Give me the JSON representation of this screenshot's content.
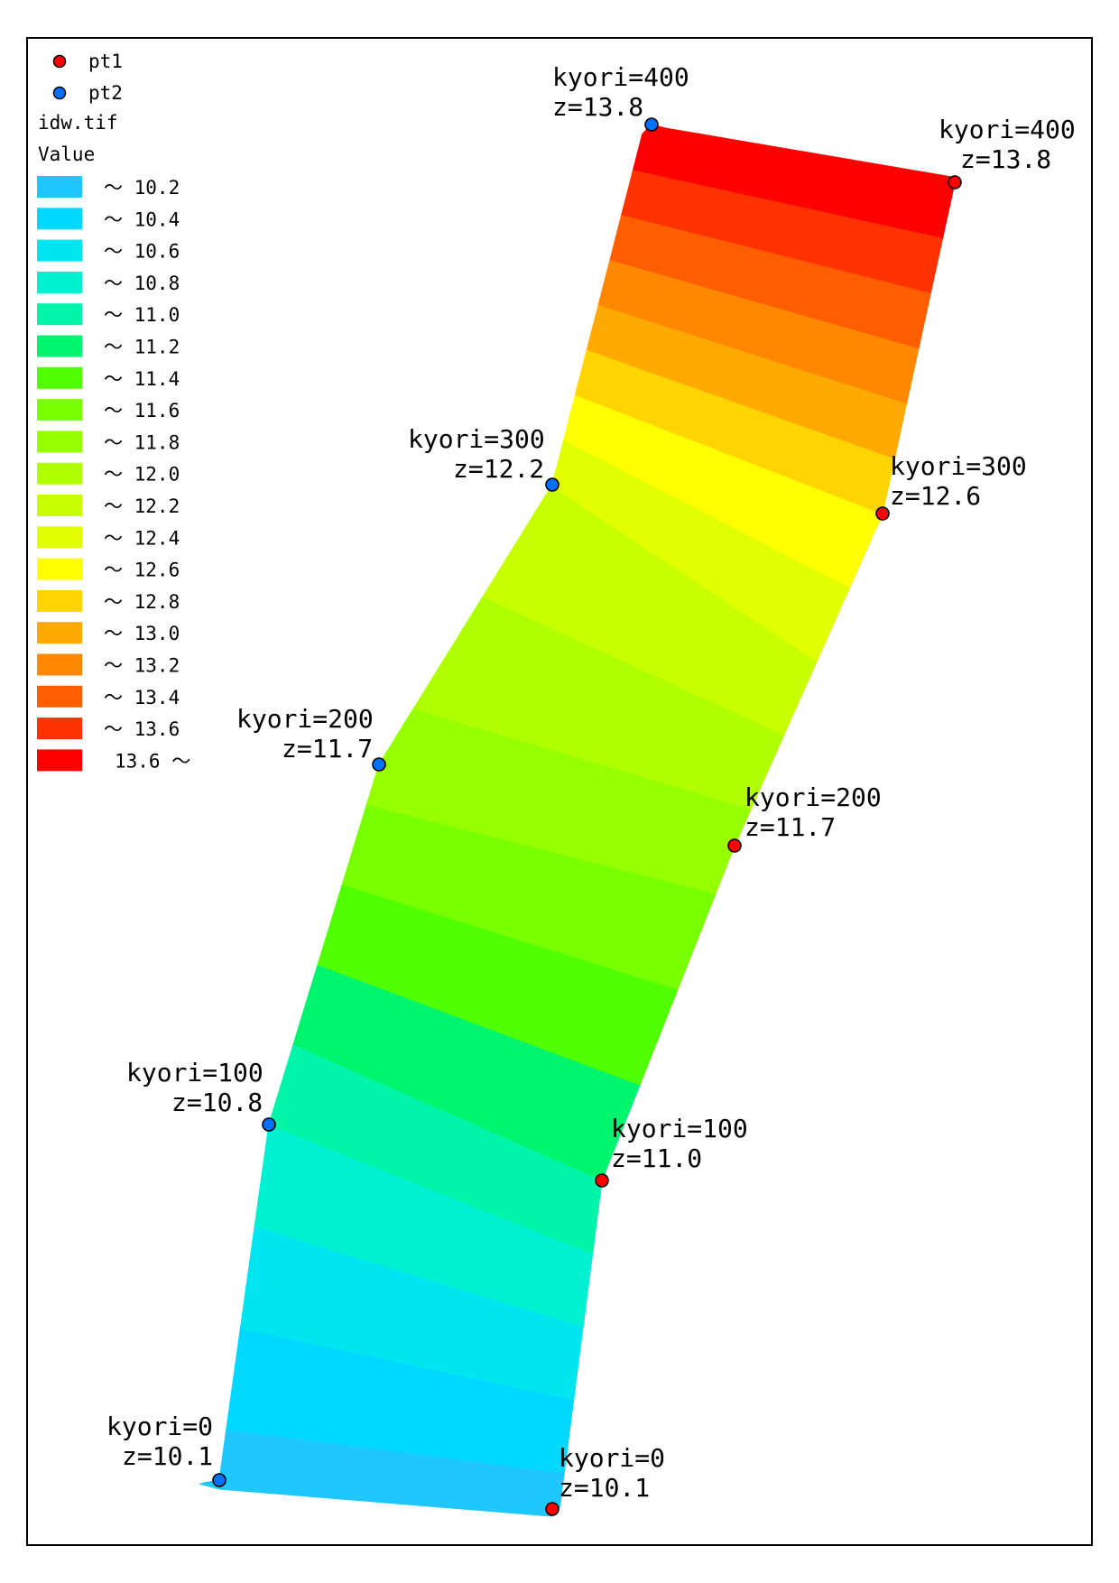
{
  "legend": {
    "points": [
      {
        "label": "pt1",
        "color": "#ff0000"
      },
      {
        "label": "pt2",
        "color": "#0070ff"
      }
    ],
    "layer_name": "idw.tif",
    "field_name": "Value",
    "classes": [
      {
        "label": "～ 10.2",
        "color": "#1ec8ff"
      },
      {
        "label": "～ 10.4",
        "color": "#00d9ff"
      },
      {
        "label": "～ 10.6",
        "color": "#00e6f0"
      },
      {
        "label": "～ 10.8",
        "color": "#00f0d2"
      },
      {
        "label": "～ 11.0",
        "color": "#00f5a8"
      },
      {
        "label": "～ 11.2",
        "color": "#00f56e"
      },
      {
        "label": "～ 11.4",
        "color": "#50ff00"
      },
      {
        "label": "～ 11.6",
        "color": "#78ff00"
      },
      {
        "label": "～ 11.8",
        "color": "#96ff00"
      },
      {
        "label": "～ 12.0",
        "color": "#b0ff00"
      },
      {
        "label": "～ 12.2",
        "color": "#c8ff00"
      },
      {
        "label": "～ 12.4",
        "color": "#e2ff00"
      },
      {
        "label": "～ 12.6",
        "color": "#ffff00"
      },
      {
        "label": "～ 12.8",
        "color": "#ffd400"
      },
      {
        "label": "～ 13.0",
        "color": "#ffaa00"
      },
      {
        "label": "～ 13.2",
        "color": "#ff8800"
      },
      {
        "label": "～ 13.4",
        "color": "#ff5e00"
      },
      {
        "label": "～ 13.6",
        "color": "#ff3200"
      },
      {
        "label": "13.6 ～",
        "color": "#ff0000"
      }
    ]
  },
  "points": {
    "pt1": [
      {
        "kyori": "kyori=0",
        "z": "z=10.1"
      },
      {
        "kyori": "kyori=100",
        "z": "z=11.0"
      },
      {
        "kyori": "kyori=200",
        "z": "z=11.7"
      },
      {
        "kyori": "kyori=300",
        "z": "z=12.6"
      },
      {
        "kyori": "kyori=400",
        "z": "z=13.8"
      }
    ],
    "pt2": [
      {
        "kyori": "kyori=0",
        "z": "z=10.1"
      },
      {
        "kyori": "kyori=100",
        "z": "z=10.8"
      },
      {
        "kyori": "kyori=200",
        "z": "z=11.7"
      },
      {
        "kyori": "kyori=300",
        "z": "z=12.2"
      },
      {
        "kyori": "kyori=400",
        "z": "z=13.8"
      }
    ]
  },
  "raster": {
    "class_breaks": [
      10.2,
      10.4,
      10.6,
      10.8,
      11.0,
      11.2,
      11.4,
      11.6,
      11.8,
      12.0,
      12.2,
      12.4,
      12.6,
      12.8,
      13.0,
      13.2,
      13.4,
      13.6
    ],
    "pt1_z": [
      10.1,
      11.0,
      11.7,
      12.6,
      13.8
    ],
    "pt2_z": [
      10.1,
      10.8,
      11.7,
      12.2,
      13.8
    ]
  }
}
